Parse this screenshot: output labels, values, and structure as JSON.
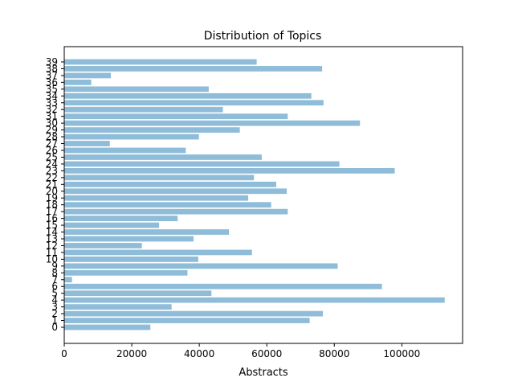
{
  "chart_data": {
    "type": "bar",
    "orientation": "horizontal",
    "title": "Distribution of Topics",
    "xlabel": "Abstracts",
    "ylabel": "",
    "xlim": [
      0,
      118000
    ],
    "xticks": [
      0,
      20000,
      40000,
      60000,
      80000,
      100000
    ],
    "grid": false,
    "legend": "none",
    "bar_color": "#8fbcd8",
    "categories": [
      "0",
      "1",
      "2",
      "3",
      "4",
      "5",
      "6",
      "7",
      "8",
      "9",
      "10",
      "11",
      "12",
      "13",
      "14",
      "15",
      "16",
      "17",
      "18",
      "19",
      "20",
      "21",
      "22",
      "23",
      "24",
      "25",
      "26",
      "27",
      "28",
      "29",
      "30",
      "31",
      "32",
      "33",
      "34",
      "35",
      "36",
      "37",
      "38",
      "39"
    ],
    "values": [
      25500,
      72700,
      76600,
      31800,
      112700,
      43600,
      94100,
      2300,
      36500,
      81000,
      39700,
      55600,
      23000,
      38300,
      48800,
      28100,
      33600,
      66200,
      61300,
      54500,
      65900,
      62800,
      56200,
      97900,
      81500,
      58500,
      36000,
      13500,
      39900,
      52000,
      87600,
      66200,
      47000,
      76800,
      73200,
      42800,
      8000,
      13800,
      76400,
      57000
    ]
  }
}
